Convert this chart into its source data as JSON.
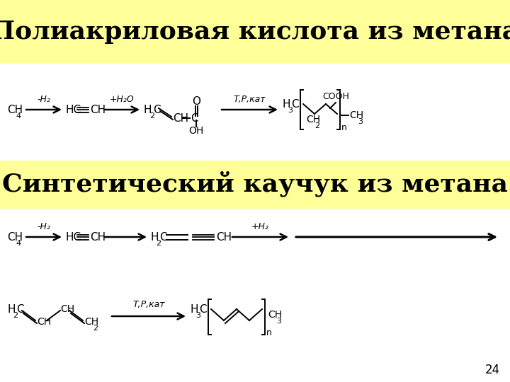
{
  "title1": "Полиакриловая кислота из метана",
  "title2": "Синтетический каучук из метана",
  "bg_yellow": "#FFFF99",
  "bg_white": "#FFFFFF",
  "text_color": "#000000",
  "page_number": "24",
  "title1_fontsize": 26,
  "title2_fontsize": 26,
  "chem_fontsize": 11
}
